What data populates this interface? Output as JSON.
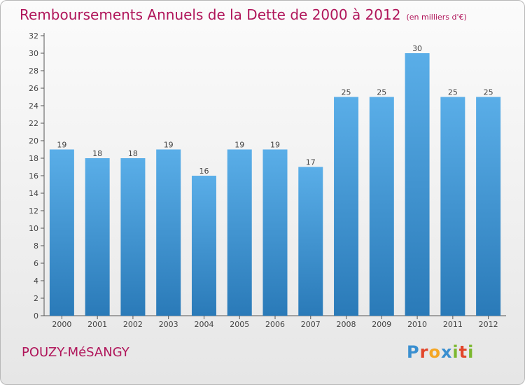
{
  "header": {
    "title": "Remboursements Annuels de la Dette de 2000 à 2012",
    "unit": "(en milliers d'€)"
  },
  "footer": {
    "city": "POUZY-MéSANGY",
    "logo_letters": [
      "P",
      "r",
      "o",
      "x",
      "i",
      "t",
      "i"
    ],
    "logo_colors": [
      "#3a8fd0",
      "#e2462b",
      "#f5a623",
      "#3a8fd0",
      "#7cb82f",
      "#e2462b",
      "#7cb82f"
    ]
  },
  "chart_data": {
    "type": "bar",
    "categories": [
      "2000",
      "2001",
      "2002",
      "2003",
      "2004",
      "2005",
      "2006",
      "2007",
      "2008",
      "2009",
      "2010",
      "2011",
      "2012"
    ],
    "values": [
      19,
      18,
      18,
      19,
      16,
      19,
      19,
      17,
      25,
      25,
      30,
      25,
      25
    ],
    "title": "Remboursements Annuels de la Dette de 2000 à 2012",
    "subtitle": "(en milliers d'€)",
    "ylim": [
      0,
      32
    ],
    "yticks": [
      0,
      2,
      4,
      6,
      8,
      10,
      12,
      14,
      16,
      18,
      20,
      22,
      24,
      26,
      28,
      30,
      32
    ],
    "grid": false,
    "bar_color_top": "#5aaee8",
    "bar_color_bottom": "#2a7ab8"
  }
}
